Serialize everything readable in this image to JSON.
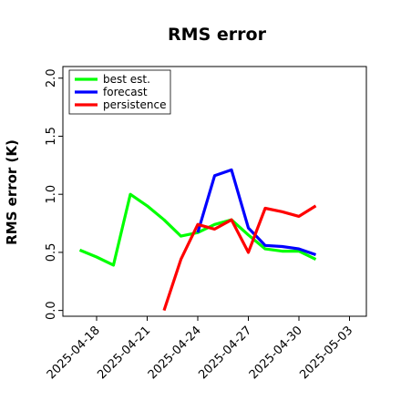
{
  "chart_data": {
    "type": "line",
    "title": "RMS error",
    "xlabel": "",
    "ylabel": "RMS error (K)",
    "ylim": [
      -0.05,
      2.1
    ],
    "xlim": [
      "2025-04-16",
      "2025-05-04"
    ],
    "yticks": [
      "0.0",
      "0.5",
      "1.0",
      "1.5",
      "2.0"
    ],
    "xticks": [
      {
        "date": "2025-04-18",
        "label": "2025-04-18",
        "color": "#000000"
      },
      {
        "date": "2025-04-21",
        "label": "2025-04-21",
        "color": "#000000"
      },
      {
        "date": "2025-04-24",
        "label": "2025-04-24",
        "color": "#228B22"
      },
      {
        "date": "2025-04-27",
        "label": "2025-04-27",
        "color": "#000000"
      },
      {
        "date": "2025-04-30",
        "label": "2025-04-30",
        "color": "#000000"
      },
      {
        "date": "2025-05-03",
        "label": "2025-05-03",
        "color": "#000000"
      }
    ],
    "legend_position": "top-left",
    "grid": false,
    "series": [
      {
        "name": "best est.",
        "color": "#00ff00",
        "x": [
          "2025-04-17",
          "2025-04-18",
          "2025-04-19",
          "2025-04-20",
          "2025-04-21",
          "2025-04-22",
          "2025-04-23",
          "2025-04-24",
          "2025-04-25",
          "2025-04-26",
          "2025-04-27",
          "2025-04-28",
          "2025-04-29",
          "2025-04-30",
          "2025-05-01"
        ],
        "y": [
          0.52,
          0.46,
          0.39,
          1.0,
          0.9,
          0.78,
          0.64,
          0.67,
          0.74,
          0.78,
          0.65,
          0.53,
          0.51,
          0.51,
          0.44
        ]
      },
      {
        "name": "forecast",
        "color": "#0000ff",
        "x": [
          "2025-04-24",
          "2025-04-25",
          "2025-04-26",
          "2025-04-27",
          "2025-04-28",
          "2025-04-29",
          "2025-04-30",
          "2025-05-01"
        ],
        "y": [
          0.67,
          1.16,
          1.21,
          0.71,
          0.56,
          0.55,
          0.53,
          0.48
        ]
      },
      {
        "name": "persistence",
        "color": "#ff0000",
        "x": [
          "2025-04-22",
          "2025-04-23",
          "2025-04-24",
          "2025-04-25",
          "2025-04-26",
          "2025-04-27",
          "2025-04-28",
          "2025-04-29",
          "2025-04-30",
          "2025-05-01"
        ],
        "y": [
          0.0,
          0.44,
          0.74,
          0.7,
          0.78,
          0.5,
          0.88,
          0.85,
          0.81,
          0.9
        ]
      }
    ]
  }
}
